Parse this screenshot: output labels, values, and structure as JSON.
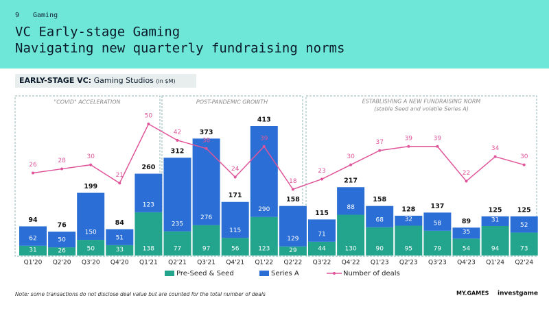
{
  "header": {
    "page_number": "9",
    "section": "Gaming",
    "title": "VC Early-stage Gaming",
    "subtitle": "Navigating new quarterly fundraising norms"
  },
  "chart_label": {
    "bold": "EARLY-STAGE VC:",
    "text": "Gaming Studios",
    "unit": "(in $M)"
  },
  "sections": [
    "\"COVID\" ACCELERATION",
    "POST-PANDEMIC GROWTH",
    "ESTABLISHING A NEW FUNDRAISING NORM",
    "(stable Seed and volatile Series A)"
  ],
  "chart_data": {
    "type": "bar",
    "stacked": true,
    "categories": [
      "Q1'20",
      "Q2'20",
      "Q3'20",
      "Q4'20",
      "Q1'21",
      "Q2'21",
      "Q3'21",
      "Q4'21",
      "Q1'22",
      "Q2'22",
      "Q3'22",
      "Q4'22",
      "Q1'23",
      "Q2'23",
      "Q3'23",
      "Q4'23",
      "Q1'24",
      "Q2'24"
    ],
    "series": [
      {
        "name": "Pre-Seed & Seed",
        "color": "#22a58c",
        "values": [
          31,
          26,
          50,
          33,
          138,
          77,
          97,
          56,
          123,
          29,
          44,
          130,
          90,
          95,
          79,
          54,
          94,
          73
        ]
      },
      {
        "name": "Series A",
        "color": "#2b6fd6",
        "values": [
          62,
          50,
          150,
          51,
          123,
          235,
          276,
          115,
          290,
          129,
          71,
          88,
          68,
          32,
          58,
          35,
          31,
          52
        ]
      },
      {
        "name": "Number of deals",
        "type": "line",
        "color": "#e0559a",
        "values": [
          26,
          28,
          30,
          21,
          50,
          42,
          38,
          24,
          39,
          18,
          23,
          30,
          37,
          39,
          39,
          22,
          34,
          30
        ]
      }
    ],
    "totals": [
      94,
      76,
      199,
      84,
      260,
      312,
      373,
      171,
      413,
      158,
      115,
      217,
      158,
      128,
      137,
      89,
      125,
      125
    ]
  },
  "footer": {
    "note": "Note: some transactions do not disclose deal value but are counted for the total number of deals",
    "logo_1": "MY.GAMES",
    "logo_2": "investgame"
  }
}
